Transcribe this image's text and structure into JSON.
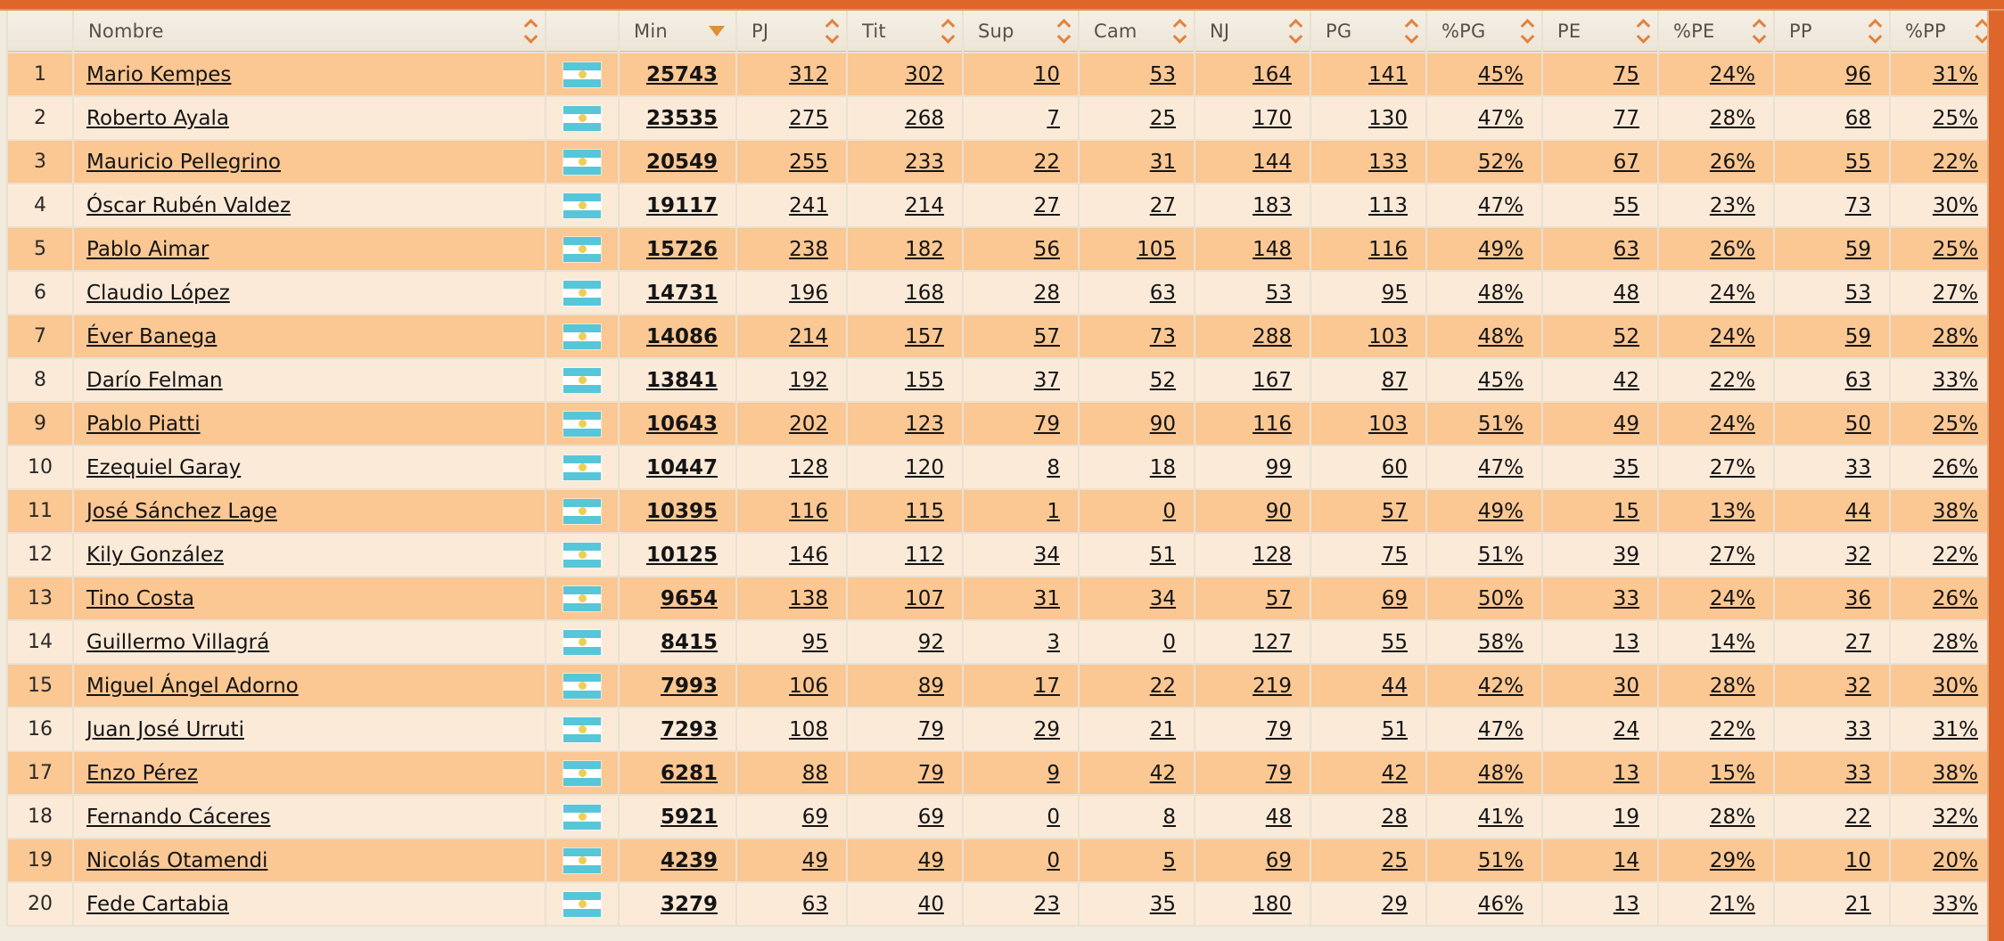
{
  "page": {
    "accent_color": "#df662a",
    "row_odd_color": "#fbc793",
    "row_even_color": "#fcead9",
    "header_bg_color": "#f0eadd",
    "sort_icon_color": "#e2823b"
  },
  "table": {
    "columns": [
      {
        "id": "rank",
        "label": "",
        "sortable": false
      },
      {
        "id": "nombre",
        "label": "Nombre",
        "sortable": true
      },
      {
        "id": "flag",
        "label": "",
        "sortable": false
      },
      {
        "id": "min",
        "label": "Min",
        "sortable": true,
        "sorted": "desc"
      },
      {
        "id": "pj",
        "label": "PJ",
        "sortable": true
      },
      {
        "id": "tit",
        "label": "Tit",
        "sortable": true
      },
      {
        "id": "sup",
        "label": "Sup",
        "sortable": true
      },
      {
        "id": "cam",
        "label": "Cam",
        "sortable": true
      },
      {
        "id": "nj",
        "label": "NJ",
        "sortable": true
      },
      {
        "id": "pg",
        "label": "PG",
        "sortable": true
      },
      {
        "id": "pctpg",
        "label": "%PG",
        "sortable": true
      },
      {
        "id": "pe",
        "label": "PE",
        "sortable": true
      },
      {
        "id": "pctpe",
        "label": "%PE",
        "sortable": true
      },
      {
        "id": "pp",
        "label": "PP",
        "sortable": true
      },
      {
        "id": "pctpp",
        "label": "%PP",
        "sortable": true
      }
    ],
    "flag": {
      "country": "Argentina"
    },
    "rows": [
      {
        "rank": "1",
        "nombre": "Mario Kempes",
        "min": "25743",
        "pj": "312",
        "tit": "302",
        "sup": "10",
        "cam": "53",
        "nj": "164",
        "pg": "141",
        "pctpg": "45%",
        "pe": "75",
        "pctpe": "24%",
        "pp": "96",
        "pctpp": "31%"
      },
      {
        "rank": "2",
        "nombre": "Roberto Ayala",
        "min": "23535",
        "pj": "275",
        "tit": "268",
        "sup": "7",
        "cam": "25",
        "nj": "170",
        "pg": "130",
        "pctpg": "47%",
        "pe": "77",
        "pctpe": "28%",
        "pp": "68",
        "pctpp": "25%"
      },
      {
        "rank": "3",
        "nombre": "Mauricio Pellegrino",
        "min": "20549",
        "pj": "255",
        "tit": "233",
        "sup": "22",
        "cam": "31",
        "nj": "144",
        "pg": "133",
        "pctpg": "52%",
        "pe": "67",
        "pctpe": "26%",
        "pp": "55",
        "pctpp": "22%"
      },
      {
        "rank": "4",
        "nombre": "Óscar Rubén Valdez",
        "min": "19117",
        "pj": "241",
        "tit": "214",
        "sup": "27",
        "cam": "27",
        "nj": "183",
        "pg": "113",
        "pctpg": "47%",
        "pe": "55",
        "pctpe": "23%",
        "pp": "73",
        "pctpp": "30%"
      },
      {
        "rank": "5",
        "nombre": "Pablo Aimar",
        "min": "15726",
        "pj": "238",
        "tit": "182",
        "sup": "56",
        "cam": "105",
        "nj": "148",
        "pg": "116",
        "pctpg": "49%",
        "pe": "63",
        "pctpe": "26%",
        "pp": "59",
        "pctpp": "25%"
      },
      {
        "rank": "6",
        "nombre": "Claudio López",
        "min": "14731",
        "pj": "196",
        "tit": "168",
        "sup": "28",
        "cam": "63",
        "nj": "53",
        "pg": "95",
        "pctpg": "48%",
        "pe": "48",
        "pctpe": "24%",
        "pp": "53",
        "pctpp": "27%"
      },
      {
        "rank": "7",
        "nombre": "Éver Banega",
        "min": "14086",
        "pj": "214",
        "tit": "157",
        "sup": "57",
        "cam": "73",
        "nj": "288",
        "pg": "103",
        "pctpg": "48%",
        "pe": "52",
        "pctpe": "24%",
        "pp": "59",
        "pctpp": "28%"
      },
      {
        "rank": "8",
        "nombre": "Darío Felman",
        "min": "13841",
        "pj": "192",
        "tit": "155",
        "sup": "37",
        "cam": "52",
        "nj": "167",
        "pg": "87",
        "pctpg": "45%",
        "pe": "42",
        "pctpe": "22%",
        "pp": "63",
        "pctpp": "33%"
      },
      {
        "rank": "9",
        "nombre": "Pablo Piatti",
        "min": "10643",
        "pj": "202",
        "tit": "123",
        "sup": "79",
        "cam": "90",
        "nj": "116",
        "pg": "103",
        "pctpg": "51%",
        "pe": "49",
        "pctpe": "24%",
        "pp": "50",
        "pctpp": "25%"
      },
      {
        "rank": "10",
        "nombre": "Ezequiel Garay",
        "min": "10447",
        "pj": "128",
        "tit": "120",
        "sup": "8",
        "cam": "18",
        "nj": "99",
        "pg": "60",
        "pctpg": "47%",
        "pe": "35",
        "pctpe": "27%",
        "pp": "33",
        "pctpp": "26%"
      },
      {
        "rank": "11",
        "nombre": "José Sánchez Lage",
        "min": "10395",
        "pj": "116",
        "tit": "115",
        "sup": "1",
        "cam": "0",
        "nj": "90",
        "pg": "57",
        "pctpg": "49%",
        "pe": "15",
        "pctpe": "13%",
        "pp": "44",
        "pctpp": "38%"
      },
      {
        "rank": "12",
        "nombre": "Kily González",
        "min": "10125",
        "pj": "146",
        "tit": "112",
        "sup": "34",
        "cam": "51",
        "nj": "128",
        "pg": "75",
        "pctpg": "51%",
        "pe": "39",
        "pctpe": "27%",
        "pp": "32",
        "pctpp": "22%"
      },
      {
        "rank": "13",
        "nombre": "Tino Costa",
        "min": "9654",
        "pj": "138",
        "tit": "107",
        "sup": "31",
        "cam": "34",
        "nj": "57",
        "pg": "69",
        "pctpg": "50%",
        "pe": "33",
        "pctpe": "24%",
        "pp": "36",
        "pctpp": "26%"
      },
      {
        "rank": "14",
        "nombre": "Guillermo Villagrá",
        "min": "8415",
        "pj": "95",
        "tit": "92",
        "sup": "3",
        "cam": "0",
        "nj": "127",
        "pg": "55",
        "pctpg": "58%",
        "pe": "13",
        "pctpe": "14%",
        "pp": "27",
        "pctpp": "28%"
      },
      {
        "rank": "15",
        "nombre": "Miguel Ángel Adorno",
        "min": "7993",
        "pj": "106",
        "tit": "89",
        "sup": "17",
        "cam": "22",
        "nj": "219",
        "pg": "44",
        "pctpg": "42%",
        "pe": "30",
        "pctpe": "28%",
        "pp": "32",
        "pctpp": "30%"
      },
      {
        "rank": "16",
        "nombre": "Juan José Urruti",
        "min": "7293",
        "pj": "108",
        "tit": "79",
        "sup": "29",
        "cam": "21",
        "nj": "79",
        "pg": "51",
        "pctpg": "47%",
        "pe": "24",
        "pctpe": "22%",
        "pp": "33",
        "pctpp": "31%"
      },
      {
        "rank": "17",
        "nombre": "Enzo Pérez",
        "min": "6281",
        "pj": "88",
        "tit": "79",
        "sup": "9",
        "cam": "42",
        "nj": "79",
        "pg": "42",
        "pctpg": "48%",
        "pe": "13",
        "pctpe": "15%",
        "pp": "33",
        "pctpp": "38%"
      },
      {
        "rank": "18",
        "nombre": "Fernando Cáceres",
        "min": "5921",
        "pj": "69",
        "tit": "69",
        "sup": "0",
        "cam": "8",
        "nj": "48",
        "pg": "28",
        "pctpg": "41%",
        "pe": "19",
        "pctpe": "28%",
        "pp": "22",
        "pctpp": "32%"
      },
      {
        "rank": "19",
        "nombre": "Nicolás Otamendi",
        "min": "4239",
        "pj": "49",
        "tit": "49",
        "sup": "0",
        "cam": "5",
        "nj": "69",
        "pg": "25",
        "pctpg": "51%",
        "pe": "14",
        "pctpe": "29%",
        "pp": "10",
        "pctpp": "20%"
      },
      {
        "rank": "20",
        "nombre": "Fede Cartabia",
        "min": "3279",
        "pj": "63",
        "tit": "40",
        "sup": "23",
        "cam": "35",
        "nj": "180",
        "pg": "29",
        "pctpg": "46%",
        "pe": "13",
        "pctpe": "21%",
        "pp": "21",
        "pctpp": "33%"
      }
    ]
  }
}
